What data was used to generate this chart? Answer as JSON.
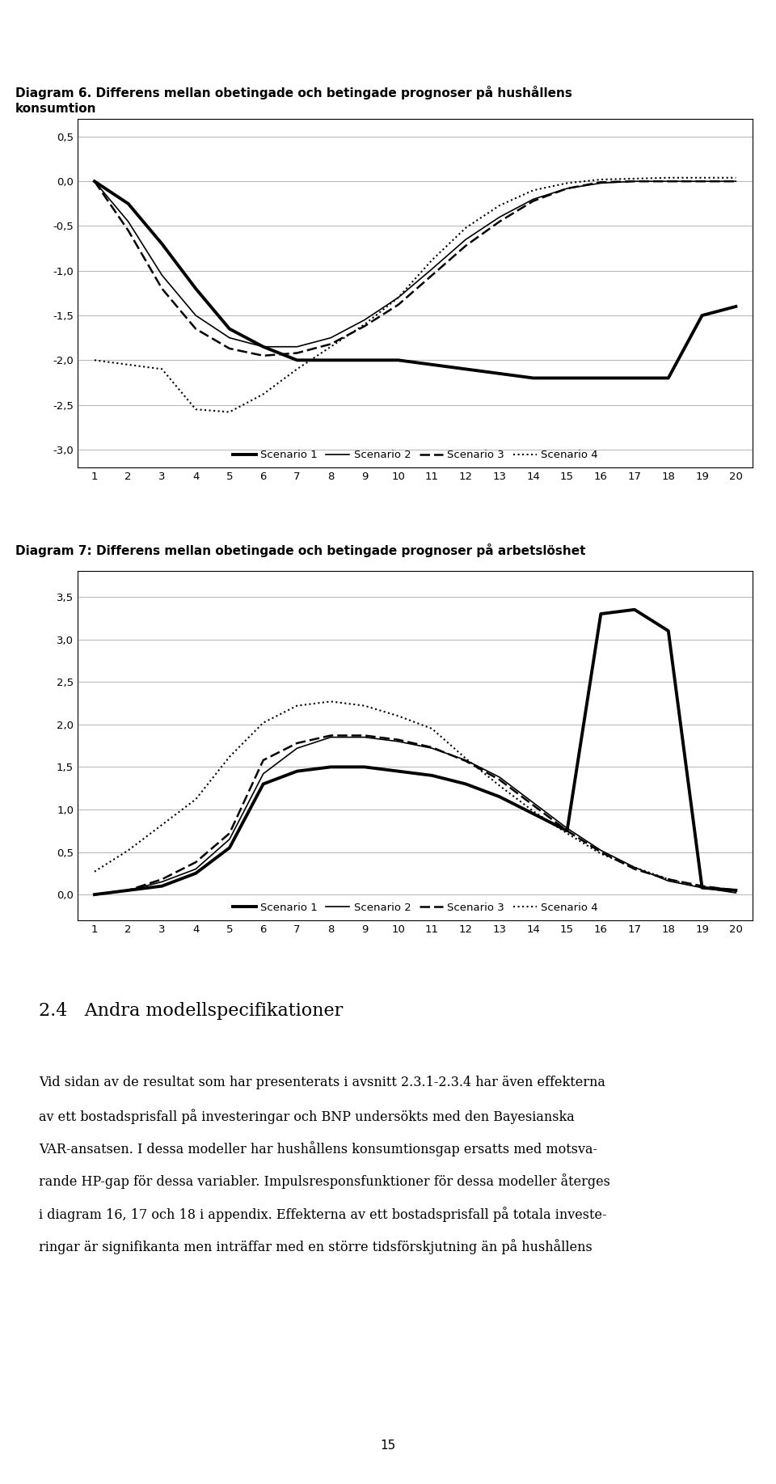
{
  "chart1_title": "Diagram 6. Differens mellan obetingade och betingade prognoser på hushållens\nkonsumtion",
  "chart2_title": "Diagram 7: Differens mellan obetingade och betingade prognoser på arbetslöshet",
  "x": [
    1,
    2,
    3,
    4,
    5,
    6,
    7,
    8,
    9,
    10,
    11,
    12,
    13,
    14,
    15,
    16,
    17,
    18,
    19,
    20
  ],
  "chart1_s1": [
    0.0,
    -0.25,
    -0.7,
    -1.2,
    -1.65,
    -1.85,
    -2.0,
    -2.0,
    -2.0,
    -2.0,
    -2.05,
    -2.1,
    -2.15,
    -2.2,
    -2.2,
    -2.2,
    -2.2,
    -2.2,
    -1.5,
    -1.4
  ],
  "chart1_s2": [
    0.0,
    -0.45,
    -1.05,
    -1.5,
    -1.75,
    -1.85,
    -1.85,
    -1.75,
    -1.55,
    -1.3,
    -0.98,
    -0.65,
    -0.4,
    -0.2,
    -0.08,
    -0.02,
    0.0,
    0.0,
    0.0,
    0.0
  ],
  "chart1_s3": [
    0.0,
    -0.55,
    -1.2,
    -1.65,
    -1.87,
    -1.95,
    -1.92,
    -1.82,
    -1.62,
    -1.38,
    -1.05,
    -0.72,
    -0.45,
    -0.22,
    -0.08,
    -0.01,
    0.0,
    0.0,
    0.0,
    0.0
  ],
  "chart1_s4": [
    -2.0,
    -2.05,
    -2.1,
    -2.55,
    -2.58,
    -2.38,
    -2.1,
    -1.85,
    -1.6,
    -1.3,
    -0.88,
    -0.52,
    -0.27,
    -0.1,
    -0.02,
    0.02,
    0.03,
    0.04,
    0.04,
    0.04
  ],
  "chart2_s1": [
    0.0,
    0.05,
    0.1,
    0.25,
    0.55,
    1.3,
    1.45,
    1.5,
    1.5,
    1.45,
    1.4,
    1.3,
    1.15,
    0.95,
    0.75,
    3.3,
    3.35,
    3.1,
    0.08,
    0.05
  ],
  "chart2_s2": [
    0.0,
    0.05,
    0.15,
    0.3,
    0.65,
    1.42,
    1.72,
    1.85,
    1.85,
    1.8,
    1.72,
    1.58,
    1.38,
    1.08,
    0.78,
    0.52,
    0.32,
    0.16,
    0.08,
    0.02
  ],
  "chart2_s3": [
    0.0,
    0.05,
    0.18,
    0.38,
    0.72,
    1.58,
    1.78,
    1.87,
    1.87,
    1.82,
    1.73,
    1.57,
    1.35,
    1.05,
    0.75,
    0.5,
    0.3,
    0.18,
    0.1,
    0.05
  ],
  "chart2_s4": [
    0.27,
    0.52,
    0.82,
    1.12,
    1.62,
    2.02,
    2.22,
    2.27,
    2.22,
    2.1,
    1.95,
    1.6,
    1.28,
    0.98,
    0.72,
    0.48,
    0.32,
    0.18,
    0.08,
    0.03
  ],
  "legend_labels": [
    "Scenario 1",
    "Scenario 2",
    "Scenario 3",
    "Scenario 4"
  ],
  "chart1_ylim": [
    -3.2,
    0.7
  ],
  "chart2_ylim": [
    -0.3,
    3.8
  ],
  "chart1_yticks": [
    0.5,
    0.0,
    -0.5,
    -1.0,
    -1.5,
    -2.0,
    -2.5,
    -3.0
  ],
  "chart2_yticks": [
    0.0,
    0.5,
    1.0,
    1.5,
    2.0,
    2.5,
    3.0,
    3.5
  ],
  "section_heading": "2.4   Andra modellspecifikationer",
  "body_text_lines": [
    "Vid sidan av de resultat som har presenterats i avsnitt 2.3.1-2.3.4 har även effekterna",
    "av ett bostadsprisfall på investeringar och BNP undersökts med den Bayesianska",
    "VAR-ansatsen. I dessa modeller har hushållens konsumtionsgap ersatts med motsva-",
    "rande HP-gap för dessa variabler. Impulsresponsfunktioner för dessa modeller återges",
    "i diagram 16, 17 och 18 i appendix. Effekterna av ett bostadsprisfall på totala investe-",
    "ringar är signifikanta men inträffar med en större tidsförskjutning än på hushållens"
  ],
  "page_number": "15"
}
